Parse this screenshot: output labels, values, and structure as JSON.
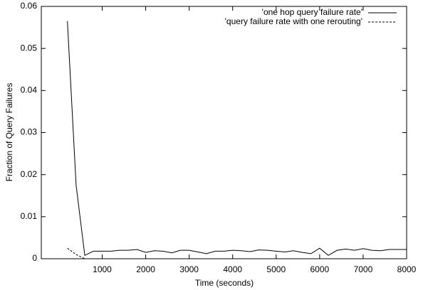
{
  "chart_data": {
    "type": "line",
    "xlabel": "Time (seconds)",
    "ylabel": "Fraction of Query Failures",
    "x": [
      200,
      400,
      600,
      800,
      1000,
      1200,
      1400,
      1600,
      1800,
      2000,
      2200,
      2400,
      2600,
      2800,
      3000,
      3200,
      3400,
      3600,
      3800,
      4000,
      4200,
      4400,
      4600,
      4800,
      5000,
      5200,
      5400,
      5600,
      5800,
      6000,
      6200,
      6400,
      6600,
      6800,
      7000,
      7200,
      7400,
      7600,
      7800,
      8000
    ],
    "series": [
      {
        "name": "'one hop query failure rate'",
        "color": "#000000",
        "dash": "solid",
        "values": [
          0.0565,
          0.0175,
          0.0008,
          0.0018,
          0.0018,
          0.0018,
          0.002,
          0.002,
          0.0022,
          0.0015,
          0.0019,
          0.0018,
          0.0014,
          0.002,
          0.002,
          0.0016,
          0.0012,
          0.0018,
          0.0018,
          0.002,
          0.0019,
          0.0017,
          0.0021,
          0.002,
          0.0018,
          0.0016,
          0.0019,
          0.0015,
          0.0012,
          0.0025,
          0.0008,
          0.002,
          0.0023,
          0.002,
          0.0024,
          0.002,
          0.0019,
          0.0022,
          0.0022,
          0.0022
        ]
      },
      {
        "name": "'query failure rate with one rerouting'",
        "color": "#000000",
        "dash": "dashed",
        "values": [
          0.0025,
          0.001,
          0,
          0,
          0,
          0,
          0,
          0,
          0,
          0,
          0,
          0,
          0,
          0,
          0,
          0,
          0,
          0,
          0,
          0,
          0,
          0,
          0,
          0,
          0,
          0,
          0,
          0,
          0,
          0,
          0,
          0,
          0,
          0,
          0,
          0,
          0,
          0,
          0,
          0
        ]
      }
    ],
    "xlim": [
      -400,
      8000
    ],
    "xticks": [
      1000,
      2000,
      3000,
      4000,
      5000,
      6000,
      7000,
      8000
    ],
    "ylim": [
      0,
      0.06
    ],
    "yticks": [
      0,
      0.01,
      0.02,
      0.03,
      0.04,
      0.05,
      0.06
    ],
    "legend": "top-right"
  }
}
